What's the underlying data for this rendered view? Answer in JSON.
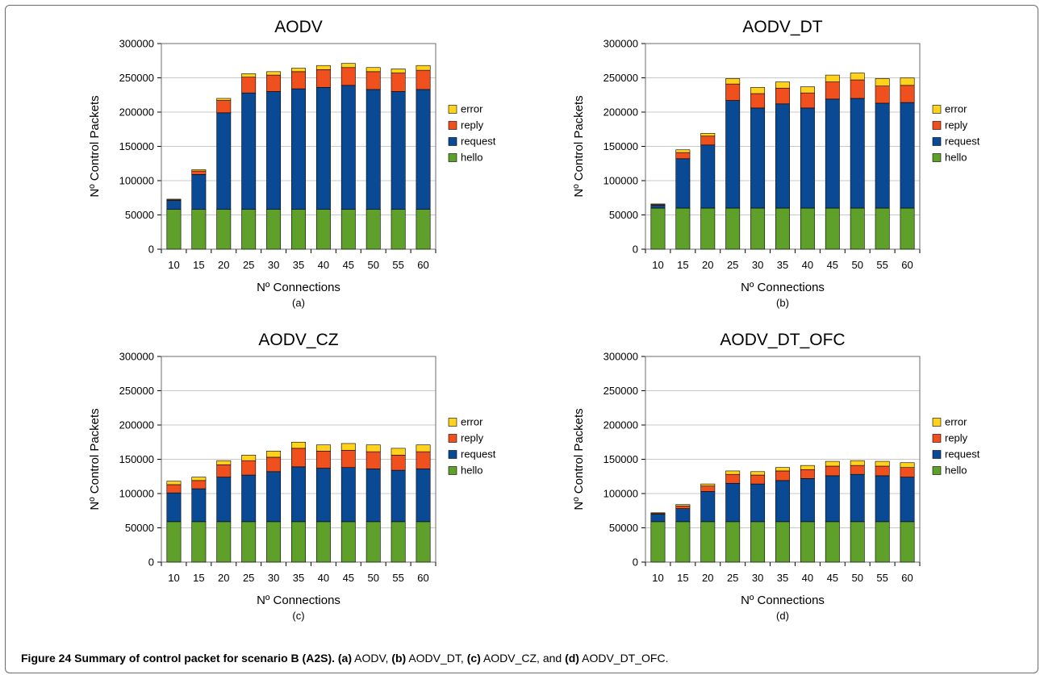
{
  "caption": {
    "label": "Figure 24",
    "title": "Summary of control packet for scenario B (A2S)",
    "parts": [
      {
        "tag": "(a)",
        "text": "AODV,"
      },
      {
        "tag": "(b)",
        "text": "AODV_DT,"
      },
      {
        "tag": "(c)",
        "text": "AODV_CZ, and"
      },
      {
        "tag": "(d)",
        "text": "AODV_DT_OFC."
      }
    ]
  },
  "colors": {
    "hello": "#5ea02a",
    "request": "#0a4a94",
    "reply": "#f0501e",
    "error": "#ffd21e",
    "grid": "#c8c8c8",
    "border": "#6b6b6b"
  },
  "chart_data": [
    {
      "type": "bar",
      "stacked": true,
      "title": "AODV",
      "sublabel": "(a)",
      "xlabel": "Nº Connections",
      "ylabel": "Nº Control Packets",
      "categories": [
        "10",
        "15",
        "20",
        "25",
        "30",
        "35",
        "40",
        "45",
        "50",
        "55",
        "60"
      ],
      "ylim": [
        0,
        300000
      ],
      "yticks": [
        "0",
        "50000",
        "100000",
        "150000",
        "200000",
        "250000",
        "300000"
      ],
      "grid": true,
      "legend_position": "right",
      "series": [
        {
          "name": "hello",
          "color": "#5ea02a",
          "values": [
            58000,
            58000,
            58000,
            58000,
            58000,
            58000,
            58000,
            58000,
            58000,
            58000,
            58000
          ]
        },
        {
          "name": "request",
          "color": "#0a4a94",
          "values": [
            13000,
            51000,
            141000,
            170000,
            172000,
            176000,
            178000,
            181000,
            175000,
            172000,
            175000
          ]
        },
        {
          "name": "reply",
          "color": "#f0501e",
          "values": [
            1000,
            5000,
            18000,
            23000,
            24000,
            25000,
            26000,
            26000,
            26000,
            27000,
            28000
          ]
        },
        {
          "name": "error",
          "color": "#ffd21e",
          "values": [
            1000,
            2000,
            3000,
            5000,
            5000,
            5000,
            6000,
            6000,
            6000,
            6000,
            7000
          ]
        }
      ]
    },
    {
      "type": "bar",
      "stacked": true,
      "title": "AODV_DT",
      "sublabel": "(b)",
      "xlabel": "Nº Connections",
      "ylabel": "Nº Control Packets",
      "categories": [
        "10",
        "15",
        "20",
        "25",
        "30",
        "35",
        "40",
        "45",
        "50",
        "55",
        "60"
      ],
      "ylim": [
        0,
        300000
      ],
      "yticks": [
        "0",
        "50000",
        "100000",
        "150000",
        "200000",
        "250000",
        "300000"
      ],
      "grid": true,
      "legend_position": "right",
      "series": [
        {
          "name": "hello",
          "color": "#5ea02a",
          "values": [
            60000,
            60000,
            60000,
            60000,
            60000,
            60000,
            60000,
            60000,
            60000,
            60000,
            60000
          ]
        },
        {
          "name": "request",
          "color": "#0a4a94",
          "values": [
            4000,
            72000,
            92000,
            157000,
            146000,
            152000,
            146000,
            159000,
            160000,
            153000,
            154000
          ]
        },
        {
          "name": "reply",
          "color": "#f0501e",
          "values": [
            1000,
            9000,
            13000,
            24000,
            21000,
            23000,
            22000,
            25000,
            27000,
            25000,
            25000
          ]
        },
        {
          "name": "error",
          "color": "#ffd21e",
          "values": [
            1000,
            4000,
            4000,
            8000,
            9000,
            9000,
            9000,
            10000,
            10000,
            11000,
            11000
          ]
        }
      ]
    },
    {
      "type": "bar",
      "stacked": true,
      "title": "AODV_CZ",
      "sublabel": "(c)",
      "xlabel": "Nº Connections",
      "ylabel": "Nº Control Packets",
      "categories": [
        "10",
        "15",
        "20",
        "25",
        "30",
        "35",
        "40",
        "45",
        "50",
        "55",
        "60"
      ],
      "ylim": [
        0,
        300000
      ],
      "yticks": [
        "0",
        "50000",
        "100000",
        "150000",
        "200000",
        "250000",
        "300000"
      ],
      "grid": true,
      "legend_position": "right",
      "series": [
        {
          "name": "hello",
          "color": "#5ea02a",
          "values": [
            59000,
            59000,
            59000,
            59000,
            59000,
            59000,
            59000,
            59000,
            59000,
            59000,
            59000
          ]
        },
        {
          "name": "request",
          "color": "#0a4a94",
          "values": [
            42000,
            48000,
            65000,
            68000,
            73000,
            80000,
            78000,
            79000,
            77000,
            75000,
            77000
          ]
        },
        {
          "name": "reply",
          "color": "#f0501e",
          "values": [
            12000,
            12000,
            18000,
            21000,
            21000,
            27000,
            25000,
            25000,
            25000,
            22000,
            25000
          ]
        },
        {
          "name": "error",
          "color": "#ffd21e",
          "values": [
            5000,
            5000,
            6000,
            8000,
            9000,
            9000,
            9000,
            10000,
            10000,
            10000,
            10000
          ]
        }
      ]
    },
    {
      "type": "bar",
      "stacked": true,
      "title": "AODV_DT_OFC",
      "sublabel": "(d)",
      "xlabel": "Nº Connections",
      "ylabel": "Nº Control Packets",
      "categories": [
        "10",
        "15",
        "20",
        "25",
        "30",
        "35",
        "40",
        "45",
        "50",
        "55",
        "60"
      ],
      "ylim": [
        0,
        300000
      ],
      "yticks": [
        "0",
        "50000",
        "100000",
        "150000",
        "200000",
        "250000",
        "300000"
      ],
      "grid": true,
      "legend_position": "right",
      "series": [
        {
          "name": "hello",
          "color": "#5ea02a",
          "values": [
            59000,
            59000,
            59000,
            59000,
            59000,
            59000,
            59000,
            59000,
            59000,
            59000,
            59000
          ]
        },
        {
          "name": "request",
          "color": "#0a4a94",
          "values": [
            11000,
            19000,
            44000,
            56000,
            55000,
            60000,
            63000,
            67000,
            69000,
            67000,
            65000
          ]
        },
        {
          "name": "reply",
          "color": "#f0501e",
          "values": [
            1000,
            4000,
            8000,
            13000,
            13000,
            14000,
            13000,
            14000,
            13000,
            14000,
            14000
          ]
        },
        {
          "name": "error",
          "color": "#ffd21e",
          "values": [
            1000,
            2000,
            3000,
            5000,
            5000,
            5000,
            6000,
            7000,
            7000,
            7000,
            7000
          ]
        }
      ]
    }
  ]
}
